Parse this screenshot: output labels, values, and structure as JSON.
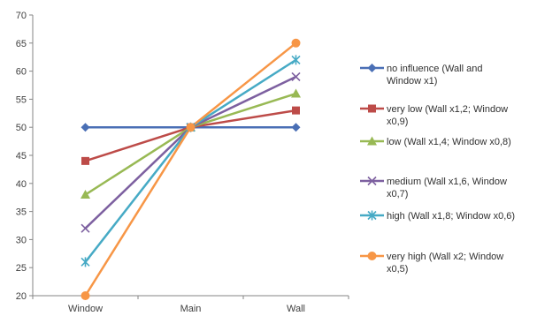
{
  "chart_data": {
    "type": "line",
    "categories": [
      "Window",
      "Main",
      "Wall"
    ],
    "ylim": [
      20,
      70
    ],
    "yticks": [
      20,
      25,
      30,
      35,
      40,
      45,
      50,
      55,
      60,
      65,
      70
    ],
    "grid": false,
    "legend_position": "right",
    "series": [
      {
        "name": "no influence (Wall and Window x1)",
        "legend_lines": [
          "no influence (Wall and",
          "Window x1)"
        ],
        "values": [
          50,
          50,
          50
        ],
        "color": "#4a6fb5",
        "marker": "diamond"
      },
      {
        "name": "very low (Wall x1,2; Window x0,9)",
        "legend_lines": [
          "very low (Wall x1,2; Window",
          "x0,9)"
        ],
        "values": [
          44,
          50,
          53
        ],
        "color": "#bd4b48",
        "marker": "square"
      },
      {
        "name": "low (Wall x1,4; Window x0,8)",
        "legend_lines": [
          "low (Wall x1,4; Window x0,8)"
        ],
        "values": [
          38,
          50,
          56
        ],
        "color": "#98b954",
        "marker": "triangle"
      },
      {
        "name": "medium (Wall x1,6, Window x0,7)",
        "legend_lines": [
          "medium (Wall x1,6, Window",
          "x0,7)"
        ],
        "values": [
          32,
          50,
          59
        ],
        "color": "#7d60a0",
        "marker": "x"
      },
      {
        "name": "high (Wall x1,8; Window x0,6)",
        "legend_lines": [
          "high (Wall x1,8; Window x0,6)"
        ],
        "values": [
          26,
          50,
          62
        ],
        "color": "#46aac5",
        "marker": "star"
      },
      {
        "name": "very high (Wall x2; Window x0,5)",
        "legend_lines": [
          "very high (Wall x2; Window",
          "x0,5)"
        ],
        "values": [
          20,
          50,
          65
        ],
        "color": "#f79646",
        "marker": "circle"
      }
    ]
  }
}
